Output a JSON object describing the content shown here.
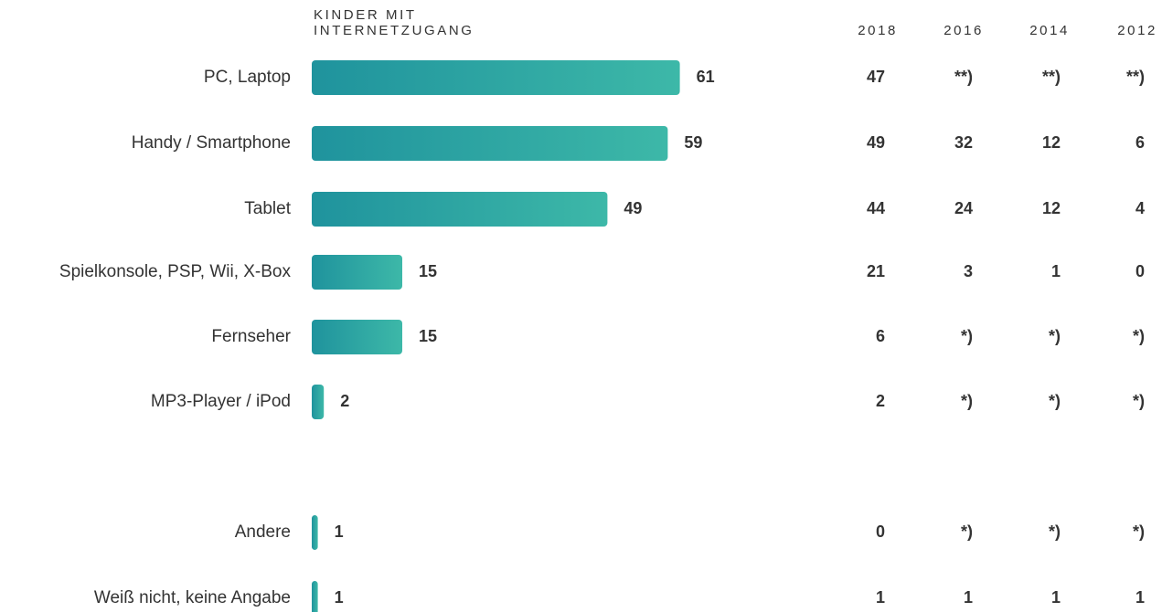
{
  "chart_data": {
    "type": "bar",
    "title": "KINDER MIT INTERNETZUGANG",
    "categories": [
      "PC, Laptop",
      "Handy / Smartphone",
      "Tablet",
      "Spielkonsole, PSP, Wii, X-Box",
      "Fernseher",
      "MP3-Player / iPod",
      "Andere",
      "Weiß nicht, keine Angabe"
    ],
    "values": [
      61,
      59,
      49,
      15,
      15,
      2,
      1,
      1
    ],
    "color": [
      "#1f939d",
      "#3db8a8"
    ],
    "columns": [
      {
        "name": "2018",
        "values": [
          47,
          49,
          44,
          21,
          6,
          2,
          0,
          1
        ]
      },
      {
        "name": "2016",
        "values": [
          "**)",
          32,
          24,
          3,
          "*)",
          "*)",
          "*)",
          1
        ]
      },
      {
        "name": "2014",
        "values": [
          "**)",
          12,
          12,
          1,
          "*)",
          "*)",
          "*)",
          1
        ]
      },
      {
        "name": "2012",
        "values": [
          "**)",
          6,
          4,
          0,
          "*)",
          "*)",
          "*)",
          1
        ]
      }
    ]
  }
}
